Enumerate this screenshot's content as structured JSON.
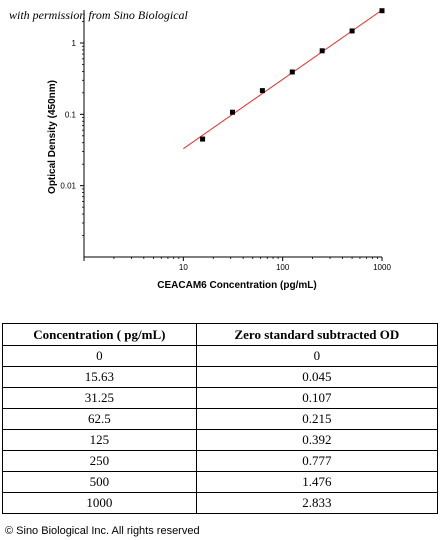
{
  "watermark": "with permission from Sino Biological",
  "copyright": "© Sino Biological Inc. All rights reserved",
  "colors": {
    "fit_line": "#e8302e",
    "points": "#000000"
  },
  "chart_data": {
    "type": "scatter",
    "xlabel": "CEACAM6 Concentration (pg/mL)",
    "ylabel": "Optical Density (450nm)",
    "x_scale": "log",
    "y_scale": "log",
    "xlim": [
      1,
      1000
    ],
    "ylim": [
      0.001,
      2.9
    ],
    "x_ticks": [
      {
        "value": 1,
        "label": ""
      },
      {
        "value": 10,
        "label": "10"
      },
      {
        "value": 100,
        "label": "100"
      },
      {
        "value": 1000,
        "label": "1000"
      }
    ],
    "y_ticks": [
      {
        "value": 1,
        "label": "1"
      },
      {
        "value": 0.1,
        "label": "0.1"
      },
      {
        "value": 0.01,
        "label": "0.01"
      }
    ],
    "points": [
      {
        "x": 15.63,
        "y": 0.045
      },
      {
        "x": 31.25,
        "y": 0.107
      },
      {
        "x": 62.5,
        "y": 0.215
      },
      {
        "x": 125,
        "y": 0.392
      },
      {
        "x": 250,
        "y": 0.777
      },
      {
        "x": 500,
        "y": 1.476
      },
      {
        "x": 1000,
        "y": 2.833
      }
    ],
    "fit_line": {
      "x": [
        10,
        1000
      ],
      "y": [
        0.033,
        2.9
      ]
    },
    "grid": false,
    "legend": "none"
  },
  "table": {
    "headers": [
      "Concentration ( pg/mL)",
      "Zero standard subtracted OD"
    ],
    "rows": [
      [
        "0",
        "0"
      ],
      [
        "15.63",
        "0.045"
      ],
      [
        "31.25",
        "0.107"
      ],
      [
        "62.5",
        "0.215"
      ],
      [
        "125",
        "0.392"
      ],
      [
        "250",
        "0.777"
      ],
      [
        "500",
        "1.476"
      ],
      [
        "1000",
        "2.833"
      ]
    ]
  }
}
